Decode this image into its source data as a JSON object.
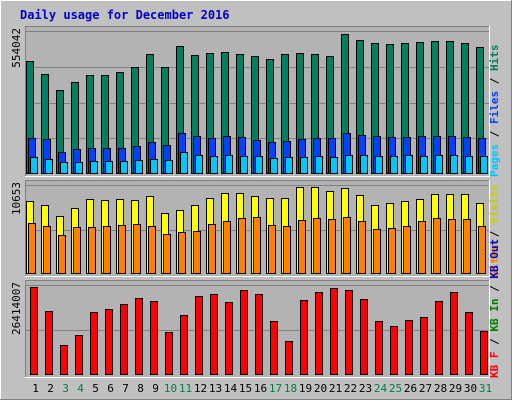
{
  "colors": {
    "background": "#c0c0c0",
    "panel": "#b3b3b3",
    "title": "#0000cc",
    "grid": "#808080",
    "hits": "#008060",
    "files": "#0040ff",
    "pages": "#00c8ff",
    "visits": "#ffff00",
    "sites": "#ff8000",
    "kbin": "#008000",
    "kbout": "#0000cc",
    "kbf": "#ff0000",
    "weekend_day": "#008040"
  },
  "chart_data": {
    "type": "bar",
    "title": "Daily usage for December 2016",
    "x": [
      "1",
      "2",
      "3",
      "4",
      "5",
      "6",
      "7",
      "8",
      "9",
      "10",
      "11",
      "12",
      "13",
      "14",
      "15",
      "16",
      "17",
      "18",
      "19",
      "20",
      "21",
      "22",
      "23",
      "24",
      "25",
      "26",
      "27",
      "28",
      "29",
      "30",
      "31"
    ],
    "weekend_days": [
      "3",
      "4",
      "10",
      "11",
      "17",
      "18",
      "24",
      "25",
      "31"
    ],
    "panels": [
      {
        "name": "hits-files-pages",
        "ymax_label": "554042",
        "ymax": 554042,
        "legend": [
          {
            "text": "Pages",
            "color": "#00c8ff"
          },
          {
            "text": " / ",
            "color": "#000000"
          },
          {
            "text": "Files",
            "color": "#0040ff"
          },
          {
            "text": " / ",
            "color": "#000000"
          },
          {
            "text": "Hits",
            "color": "#008060"
          }
        ],
        "series": [
          {
            "name": "Hits",
            "color": "#008060",
            "values": [
              439000,
              386000,
              325000,
              356000,
              383000,
              384000,
              396000,
              414000,
              465000,
              415000,
              494000,
              461000,
              467000,
              473000,
              465000,
              459000,
              446000,
              463000,
              468000,
              464000,
              457000,
              543000,
              520000,
              507000,
              504000,
              508000,
              513000,
              514000,
              515000,
              508000,
              491000
            ]
          },
          {
            "name": "Files",
            "color": "#0040ff",
            "values": [
              138000,
              135000,
              87000,
              95000,
              99000,
              101000,
              102000,
              109000,
              124000,
              114000,
              157000,
              146000,
              141000,
              146000,
              143000,
              133000,
              124000,
              128000,
              134000,
              138000,
              139000,
              159000,
              151000,
              146000,
              144000,
              145000,
              147000,
              149000,
              148000,
              145000,
              138000
            ]
          },
          {
            "name": "Pages",
            "color": "#00c8ff",
            "values": [
              64000,
              58000,
              46000,
              48000,
              52000,
              51000,
              52000,
              54000,
              60000,
              55000,
              87000,
              74000,
              69000,
              72000,
              71000,
              68000,
              63000,
              65000,
              67000,
              69000,
              67000,
              75000,
              72000,
              71000,
              71000,
              72000,
              71000,
              72000,
              72000,
              71000,
              68000
            ]
          }
        ]
      },
      {
        "name": "visits-sites",
        "ymax_label": "10653",
        "ymax": 10653,
        "legend": [
          {
            "text": "Sites",
            "color": "#ff8000"
          },
          {
            "text": " / ",
            "color": "#000000"
          },
          {
            "text": "Visits",
            "color": "#cccc00"
          }
        ],
        "series": [
          {
            "name": "Visits",
            "color": "#ffff00",
            "values": [
              8700,
              8200,
              7000,
              7900,
              9000,
              8800,
              9000,
              8900,
              9300,
              7300,
              7700,
              8200,
              9100,
              9700,
              9700,
              9300,
              9100,
              9100,
              10400,
              10400,
              9900,
              10300,
              9400,
              8200,
              8500,
              8700,
              9000,
              9600,
              9600,
              9600,
              8500
            ]
          },
          {
            "name": "Sites",
            "color": "#ff8000",
            "values": [
              6100,
              5800,
              4700,
              5600,
              5600,
              5700,
              5900,
              6000,
              5800,
              4800,
              5000,
              5200,
              6000,
              6400,
              6700,
              6800,
              5900,
              5700,
              6500,
              6700,
              6600,
              6800,
              6400,
              5400,
              5500,
              5800,
              6300,
              6700,
              6600,
              6600,
              5800
            ]
          }
        ]
      },
      {
        "name": "kb",
        "ymax_label": "26414007",
        "ymax": 26414007,
        "legend": [
          {
            "text": "KB F",
            "color": "#ff0000"
          },
          {
            "text": " / ",
            "color": "#000000"
          },
          {
            "text": "KB In",
            "color": "#008000"
          },
          {
            "text": " / ",
            "color": "#000000"
          },
          {
            "text": "KB Out",
            "color": "#0000cc"
          }
        ],
        "series": [
          {
            "name": "KB F",
            "color": "#ff0000",
            "values": [
              25900000,
              18800000,
              8900000,
              11700000,
              18400000,
              19300000,
              20800000,
              22700000,
              21800000,
              12500000,
              17600000,
              23200000,
              23800000,
              21400000,
              24800000,
              23700000,
              15900000,
              9900000,
              21900000,
              24300000,
              25600000,
              24900000,
              22200000,
              15900000,
              14500000,
              16100000,
              17100000,
              21800000,
              24300000,
              18600000,
              13000000
            ]
          }
        ]
      }
    ]
  }
}
